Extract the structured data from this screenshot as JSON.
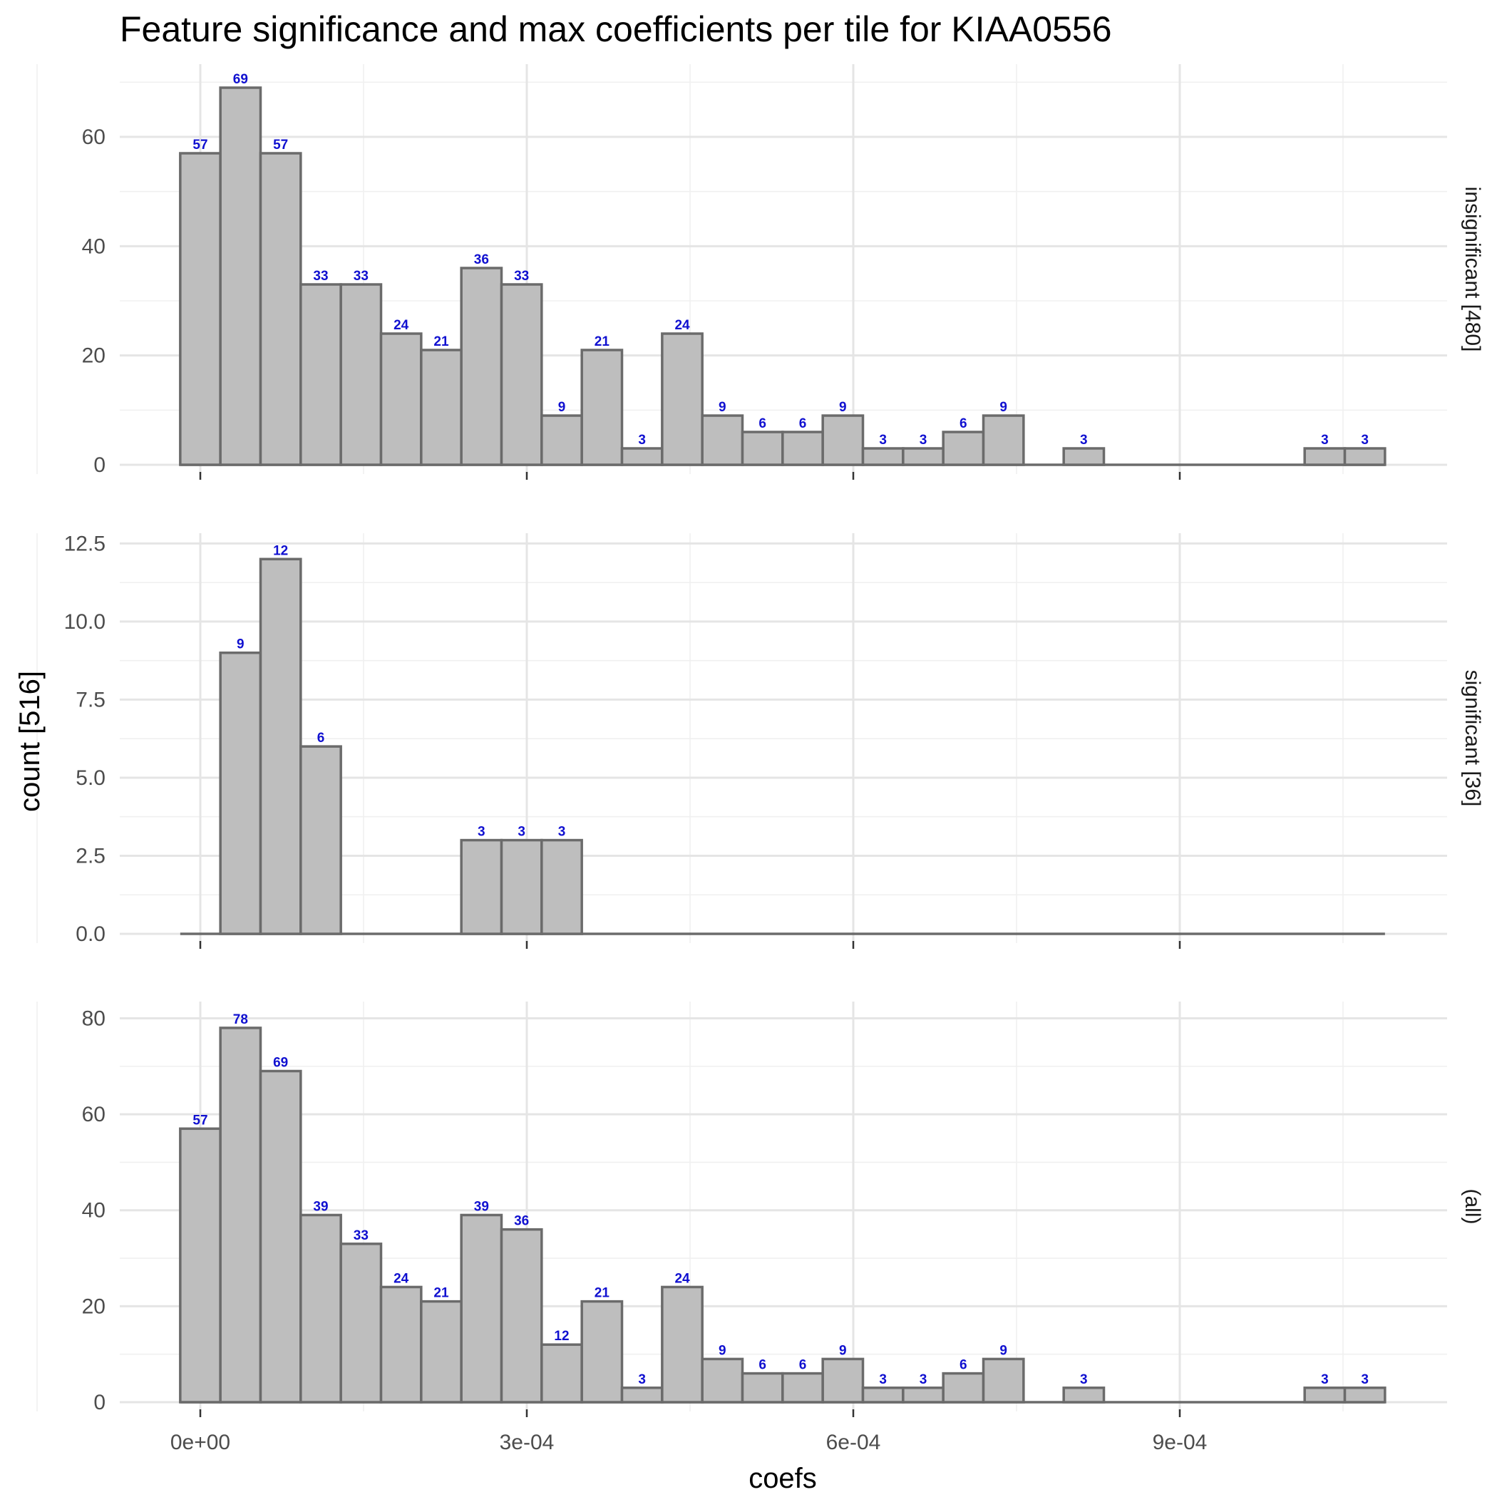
{
  "chart_data": {
    "type": "bar",
    "title": "Feature significance and max coefficients per tile for KIAA0556",
    "xlabel": "coefs",
    "ylabel": "count [516]",
    "x_ticks": [
      {
        "value": 0,
        "label": "0e+00"
      },
      {
        "value": 0.0003,
        "label": "3e-04"
      },
      {
        "value": 0.0006,
        "label": "6e-04"
      },
      {
        "value": 0.0009,
        "label": "9e-04"
      }
    ],
    "xlim": [
      -7e-05,
      0.00114
    ],
    "bin_width": 3.69e-05,
    "bin_centers": [
      0,
      3.69e-05,
      7.38e-05,
      0.0001107,
      0.0001476,
      0.0001845,
      0.0002214,
      0.0002583,
      0.0002952,
      0.0003321,
      0.000369,
      0.0004059,
      0.0004428,
      0.0004797,
      0.0005166,
      0.0005535,
      0.0005904,
      0.0006273,
      0.0006642,
      0.0007011,
      0.000738,
      0.0007749,
      0.0008118,
      0.0008487,
      0.0008856,
      0.0009225,
      0.0009594,
      0.0009963,
      0.0010332,
      0.0010701
    ],
    "panels": [
      {
        "strip": "insignificant [480]",
        "ylim": [
          0,
          72
        ],
        "y_ticks": [
          0,
          20,
          40,
          60
        ],
        "y_tick_labels": [
          "0",
          "20",
          "40",
          "60"
        ],
        "values": [
          57,
          69,
          57,
          33,
          33,
          24,
          21,
          36,
          33,
          9,
          21,
          3,
          24,
          9,
          6,
          6,
          9,
          3,
          3,
          6,
          9,
          0,
          3,
          0,
          0,
          0,
          0,
          0,
          3,
          3
        ]
      },
      {
        "strip": "significant [36]",
        "ylim": [
          0,
          12.6
        ],
        "y_ticks": [
          0,
          2.5,
          5,
          7.5,
          10,
          12.5
        ],
        "y_tick_labels": [
          "0.0",
          "2.5",
          "5.0",
          "7.5",
          "10.0",
          "12.5"
        ],
        "values": [
          0,
          9,
          12,
          6,
          0,
          0,
          0,
          3,
          3,
          3,
          0,
          0,
          0,
          0,
          0,
          0,
          0,
          0,
          0,
          0,
          0,
          0,
          0,
          0,
          0,
          0,
          0,
          0,
          0,
          0
        ]
      },
      {
        "strip": "(all)",
        "ylim": [
          0,
          82
        ],
        "y_ticks": [
          0,
          20,
          40,
          60,
          80
        ],
        "y_tick_labels": [
          "0",
          "20",
          "40",
          "60",
          "80"
        ],
        "values": [
          57,
          78,
          69,
          39,
          33,
          24,
          21,
          39,
          36,
          12,
          21,
          3,
          24,
          9,
          6,
          6,
          9,
          3,
          3,
          6,
          9,
          0,
          3,
          0,
          0,
          0,
          0,
          0,
          3,
          3
        ]
      }
    ],
    "colors": {
      "bar_fill": "#bebebe",
      "bar_outline": "#6b6b6b",
      "label_text": "#1010d0",
      "grid": "#e5e5e5"
    },
    "grid": true,
    "legend": "none"
  }
}
